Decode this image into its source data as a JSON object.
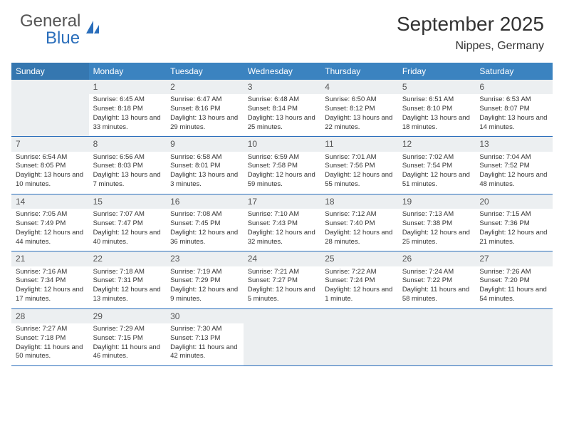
{
  "brand": {
    "name1": "General",
    "name2": "Blue"
  },
  "title": "September 2025",
  "location": "Nippes, Germany",
  "day_headers": [
    "Sunday",
    "Monday",
    "Tuesday",
    "Wednesday",
    "Thursday",
    "Friday",
    "Saturday"
  ],
  "colors": {
    "header_bg": "#3b83c0",
    "header_bg_first": "#3577b0",
    "border": "#2a6ebb",
    "shaded": "#eceff1",
    "text": "#333333",
    "logo_blue": "#2a6ebb"
  },
  "weeks": [
    [
      {
        "empty": true
      },
      {
        "n": "1",
        "sunrise": "6:45 AM",
        "sunset": "8:18 PM",
        "daylight": "13 hours and 33 minutes."
      },
      {
        "n": "2",
        "sunrise": "6:47 AM",
        "sunset": "8:16 PM",
        "daylight": "13 hours and 29 minutes."
      },
      {
        "n": "3",
        "sunrise": "6:48 AM",
        "sunset": "8:14 PM",
        "daylight": "13 hours and 25 minutes."
      },
      {
        "n": "4",
        "sunrise": "6:50 AM",
        "sunset": "8:12 PM",
        "daylight": "13 hours and 22 minutes."
      },
      {
        "n": "5",
        "sunrise": "6:51 AM",
        "sunset": "8:10 PM",
        "daylight": "13 hours and 18 minutes."
      },
      {
        "n": "6",
        "sunrise": "6:53 AM",
        "sunset": "8:07 PM",
        "daylight": "13 hours and 14 minutes."
      }
    ],
    [
      {
        "n": "7",
        "sunrise": "6:54 AM",
        "sunset": "8:05 PM",
        "daylight": "13 hours and 10 minutes."
      },
      {
        "n": "8",
        "sunrise": "6:56 AM",
        "sunset": "8:03 PM",
        "daylight": "13 hours and 7 minutes."
      },
      {
        "n": "9",
        "sunrise": "6:58 AM",
        "sunset": "8:01 PM",
        "daylight": "13 hours and 3 minutes."
      },
      {
        "n": "10",
        "sunrise": "6:59 AM",
        "sunset": "7:58 PM",
        "daylight": "12 hours and 59 minutes."
      },
      {
        "n": "11",
        "sunrise": "7:01 AM",
        "sunset": "7:56 PM",
        "daylight": "12 hours and 55 minutes."
      },
      {
        "n": "12",
        "sunrise": "7:02 AM",
        "sunset": "7:54 PM",
        "daylight": "12 hours and 51 minutes."
      },
      {
        "n": "13",
        "sunrise": "7:04 AM",
        "sunset": "7:52 PM",
        "daylight": "12 hours and 48 minutes."
      }
    ],
    [
      {
        "n": "14",
        "sunrise": "7:05 AM",
        "sunset": "7:49 PM",
        "daylight": "12 hours and 44 minutes."
      },
      {
        "n": "15",
        "sunrise": "7:07 AM",
        "sunset": "7:47 PM",
        "daylight": "12 hours and 40 minutes."
      },
      {
        "n": "16",
        "sunrise": "7:08 AM",
        "sunset": "7:45 PM",
        "daylight": "12 hours and 36 minutes."
      },
      {
        "n": "17",
        "sunrise": "7:10 AM",
        "sunset": "7:43 PM",
        "daylight": "12 hours and 32 minutes."
      },
      {
        "n": "18",
        "sunrise": "7:12 AM",
        "sunset": "7:40 PM",
        "daylight": "12 hours and 28 minutes."
      },
      {
        "n": "19",
        "sunrise": "7:13 AM",
        "sunset": "7:38 PM",
        "daylight": "12 hours and 25 minutes."
      },
      {
        "n": "20",
        "sunrise": "7:15 AM",
        "sunset": "7:36 PM",
        "daylight": "12 hours and 21 minutes."
      }
    ],
    [
      {
        "n": "21",
        "sunrise": "7:16 AM",
        "sunset": "7:34 PM",
        "daylight": "12 hours and 17 minutes."
      },
      {
        "n": "22",
        "sunrise": "7:18 AM",
        "sunset": "7:31 PM",
        "daylight": "12 hours and 13 minutes."
      },
      {
        "n": "23",
        "sunrise": "7:19 AM",
        "sunset": "7:29 PM",
        "daylight": "12 hours and 9 minutes."
      },
      {
        "n": "24",
        "sunrise": "7:21 AM",
        "sunset": "7:27 PM",
        "daylight": "12 hours and 5 minutes."
      },
      {
        "n": "25",
        "sunrise": "7:22 AM",
        "sunset": "7:24 PM",
        "daylight": "12 hours and 1 minute."
      },
      {
        "n": "26",
        "sunrise": "7:24 AM",
        "sunset": "7:22 PM",
        "daylight": "11 hours and 58 minutes."
      },
      {
        "n": "27",
        "sunrise": "7:26 AM",
        "sunset": "7:20 PM",
        "daylight": "11 hours and 54 minutes."
      }
    ],
    [
      {
        "n": "28",
        "sunrise": "7:27 AM",
        "sunset": "7:18 PM",
        "daylight": "11 hours and 50 minutes."
      },
      {
        "n": "29",
        "sunrise": "7:29 AM",
        "sunset": "7:15 PM",
        "daylight": "11 hours and 46 minutes."
      },
      {
        "n": "30",
        "sunrise": "7:30 AM",
        "sunset": "7:13 PM",
        "daylight": "11 hours and 42 minutes."
      },
      {
        "empty": true
      },
      {
        "empty": true
      },
      {
        "empty": true
      },
      {
        "empty": true
      }
    ]
  ],
  "labels": {
    "sunrise_prefix": "Sunrise: ",
    "sunset_prefix": "Sunset: ",
    "daylight_prefix": "Daylight: "
  }
}
